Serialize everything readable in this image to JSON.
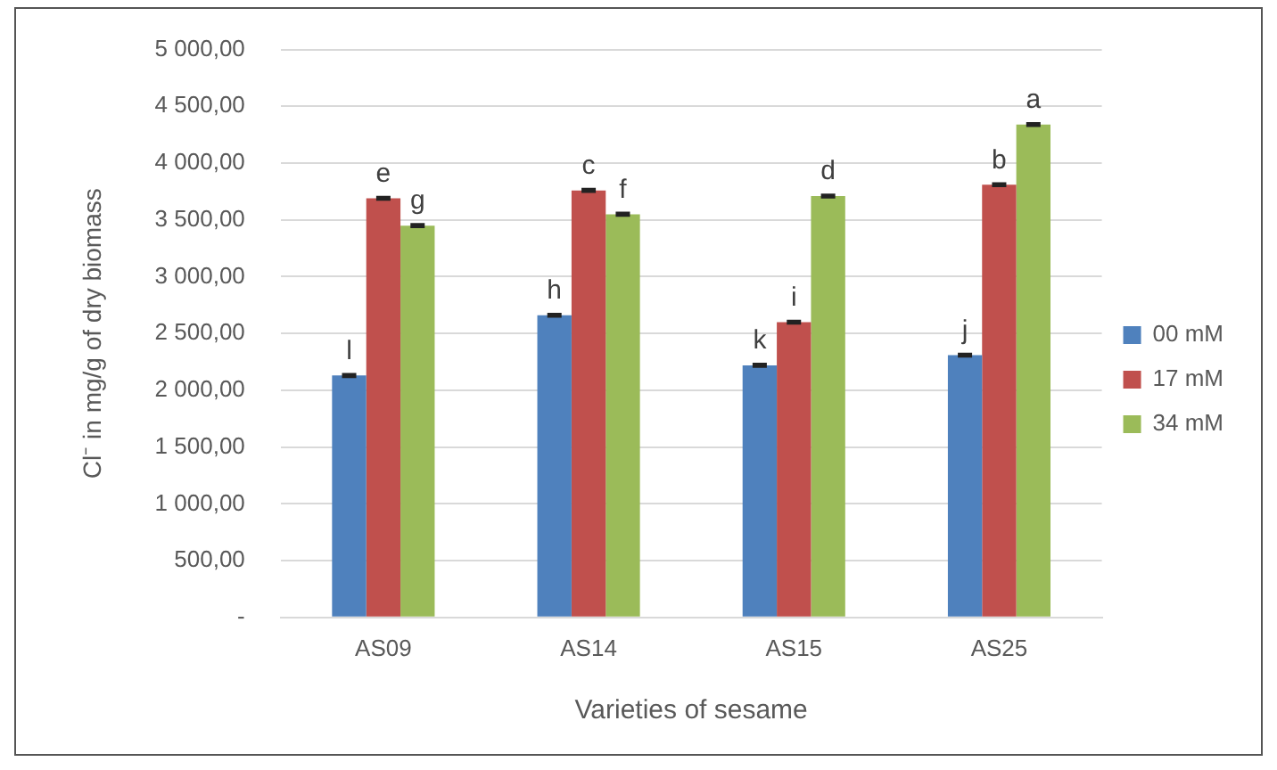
{
  "chart_data": {
    "type": "bar",
    "xlabel": "Varieties of sesame",
    "ylabel": "Cl⁻ in mg/g of dry biomass",
    "categories": [
      "AS09",
      "AS14",
      "AS15",
      "AS25"
    ],
    "series": [
      {
        "name": "00 mM",
        "color": "#4f81bd",
        "values": [
          2130,
          2660,
          2220,
          2310
        ],
        "errors": [
          10,
          10,
          10,
          10
        ]
      },
      {
        "name": "17 mM",
        "color": "#c0504d",
        "values": [
          3690,
          3760,
          2600,
          3810
        ],
        "errors": [
          10,
          10,
          10,
          10
        ]
      },
      {
        "name": "34 mM",
        "color": "#9bbb59",
        "values": [
          3450,
          3550,
          3710,
          4340
        ],
        "errors": [
          10,
          10,
          10,
          10
        ]
      }
    ],
    "ylim": [
      0,
      5000
    ],
    "yticks": [
      {
        "value": 0,
        "label": "-"
      },
      {
        "value": 500,
        "label": "500,00"
      },
      {
        "value": 1000,
        "label": "1 000,00"
      },
      {
        "value": 1500,
        "label": "1 500,00"
      },
      {
        "value": 2000,
        "label": "2 000,00"
      },
      {
        "value": 2500,
        "label": "2 500,00"
      },
      {
        "value": 3000,
        "label": "3 000,00"
      },
      {
        "value": 3500,
        "label": "3 500,00"
      },
      {
        "value": 4000,
        "label": "4 000,00"
      },
      {
        "value": 4500,
        "label": "4 500,00"
      },
      {
        "value": 5000,
        "label": "5 000,00"
      }
    ],
    "annotations": [
      "l",
      "e",
      "g",
      "h",
      "c",
      "f",
      "k",
      "i",
      "d",
      "j",
      "b",
      "a"
    ],
    "grid": "y",
    "legend": "right"
  }
}
